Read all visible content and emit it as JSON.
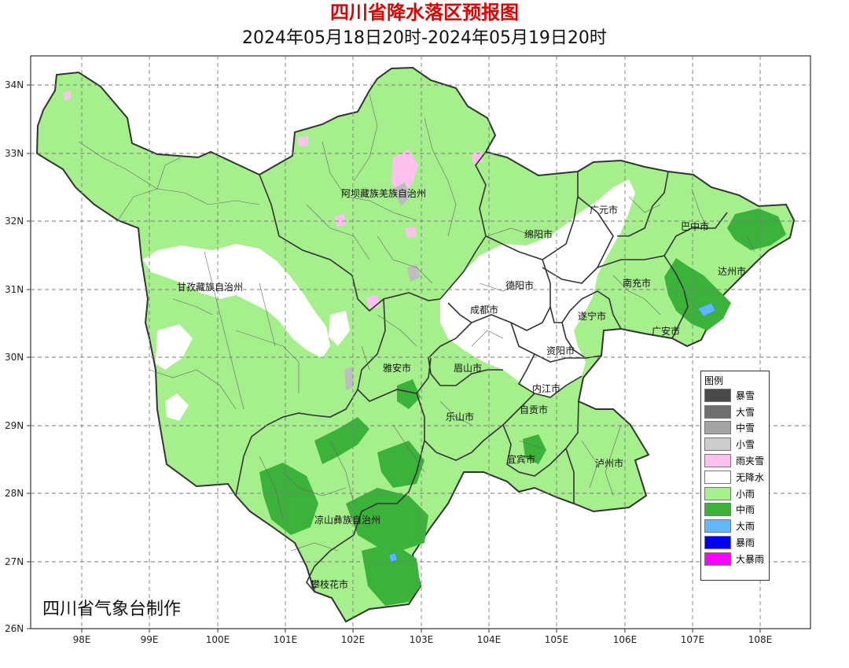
{
  "title": "四川省降水落区预报图",
  "subtitle": "2024年05月18日20时-2024年05月19日20时",
  "footer": "四川省气象台制作",
  "y_ticks": [
    "34N",
    "33N",
    "32N",
    "31N",
    "30N",
    "29N",
    "28N",
    "27N",
    "26N"
  ],
  "x_ticks": [
    "98E",
    "99E",
    "100E",
    "101E",
    "102E",
    "103E",
    "104E",
    "105E",
    "106E",
    "107E",
    "108E"
  ],
  "cities": [
    {
      "name": "阿坝藏族羌族自治州"
    },
    {
      "name": "甘孜藏族自治州"
    },
    {
      "name": "广元市"
    },
    {
      "name": "巴中市"
    },
    {
      "name": "绵阳市"
    },
    {
      "name": "达州市"
    },
    {
      "name": "南充市"
    },
    {
      "name": "德阳市"
    },
    {
      "name": "成都市"
    },
    {
      "name": "遂宁市"
    },
    {
      "name": "广安市"
    },
    {
      "name": "资阳市"
    },
    {
      "name": "雅安市"
    },
    {
      "name": "眉山市"
    },
    {
      "name": "内江市"
    },
    {
      "name": "乐山市"
    },
    {
      "name": "自贡市"
    },
    {
      "name": "宜宾市"
    },
    {
      "name": "泸州市"
    },
    {
      "name": "凉山彝族自治州"
    },
    {
      "name": "攀枝花市"
    }
  ],
  "legend": {
    "title": "图例",
    "items": [
      {
        "label": "暴雪",
        "color": "#4a4a4a"
      },
      {
        "label": "大雪",
        "color": "#6f6f6f"
      },
      {
        "label": "中雪",
        "color": "#a4a4a4"
      },
      {
        "label": "小雪",
        "color": "#cccccc"
      },
      {
        "label": "雨夹雪",
        "color": "#ffc2ef"
      },
      {
        "label": "无降水",
        "color": "#ffffff"
      },
      {
        "label": "小雨",
        "color": "#a6ef8d"
      },
      {
        "label": "中雨",
        "color": "#3bb33b"
      },
      {
        "label": "大雨",
        "color": "#61b6ff"
      },
      {
        "label": "暴雨",
        "color": "#0000f0"
      },
      {
        "label": "大暴雨",
        "color": "#ff00ff"
      }
    ]
  }
}
